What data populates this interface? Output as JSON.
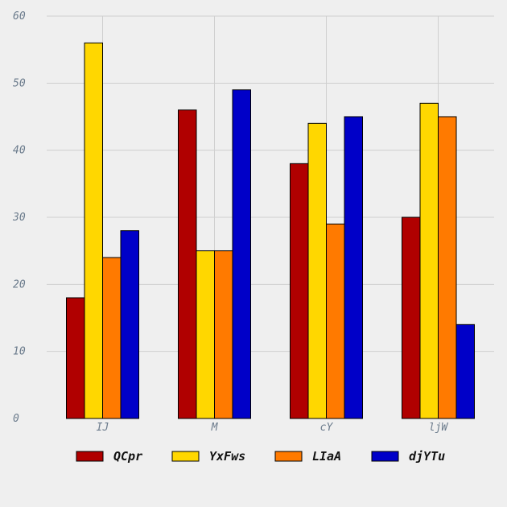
{
  "chart_data": {
    "type": "bar",
    "categories": [
      "IJ",
      "M",
      "cY",
      "ljW"
    ],
    "series": [
      {
        "name": "QCpr",
        "color": "#b00000",
        "values": [
          18,
          46,
          38,
          30
        ]
      },
      {
        "name": "YxFws",
        "color": "#ffd700",
        "values": [
          56,
          25,
          44,
          47
        ]
      },
      {
        "name": "LIaA",
        "color": "#ff7a00",
        "values": [
          24,
          25,
          29,
          45
        ]
      },
      {
        "name": "djYTu",
        "color": "#0000c8",
        "values": [
          28,
          49,
          45,
          14
        ]
      }
    ],
    "ylim": [
      0,
      60
    ],
    "yticks": [
      0,
      10,
      20,
      30,
      40,
      50,
      60
    ],
    "grid": true,
    "legend_position": "bottom"
  }
}
